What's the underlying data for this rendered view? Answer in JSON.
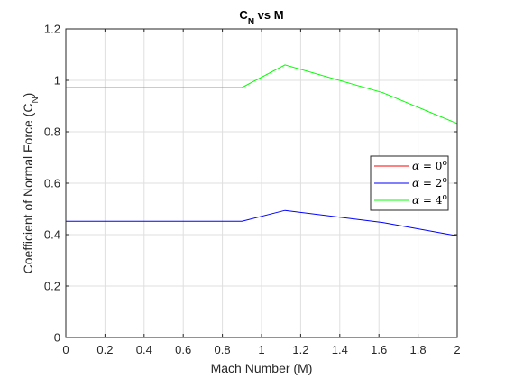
{
  "chart_data": {
    "type": "line",
    "title": {
      "main": "C",
      "sub": "N",
      "rest": " vs M"
    },
    "xlabel": "Mach Number (M)",
    "ylabel": {
      "main": "Coefficient of Normal Force (C",
      "sub": "N",
      "rest": ")"
    },
    "xlim": [
      0,
      2
    ],
    "ylim": [
      0,
      1.2
    ],
    "xticks": [
      "0",
      "0.2",
      "0.4",
      "0.6",
      "0.8",
      "1",
      "1.2",
      "1.4",
      "1.6",
      "1.8",
      "2"
    ],
    "yticks": [
      "0",
      "0.2",
      "0.4",
      "0.6",
      "0.8",
      "1",
      "1.2"
    ],
    "grid": true,
    "legend_position": "right",
    "series": [
      {
        "name": "α = 0°",
        "legend": {
          "sym": "α",
          "eq": " = 0",
          "sup": "o"
        },
        "color": "#ff0000",
        "x": [
          0,
          0.9,
          1.12,
          1.62,
          2.0
        ],
        "y": [
          0,
          0,
          0,
          0,
          0
        ]
      },
      {
        "name": "α = 2°",
        "legend": {
          "sym": "α",
          "eq": " = 2",
          "sup": "o"
        },
        "color": "#0000ff",
        "x": [
          0,
          0.9,
          1.12,
          1.62,
          2.0
        ],
        "y": [
          0.452,
          0.452,
          0.494,
          0.447,
          0.395
        ]
      },
      {
        "name": "α = 4°",
        "legend": {
          "sym": "α",
          "eq": " = 4",
          "sup": "o"
        },
        "color": "#00ff00",
        "x": [
          0,
          0.9,
          1.12,
          1.62,
          2.0
        ],
        "y": [
          0.972,
          0.972,
          1.06,
          0.952,
          0.832
        ]
      }
    ]
  }
}
